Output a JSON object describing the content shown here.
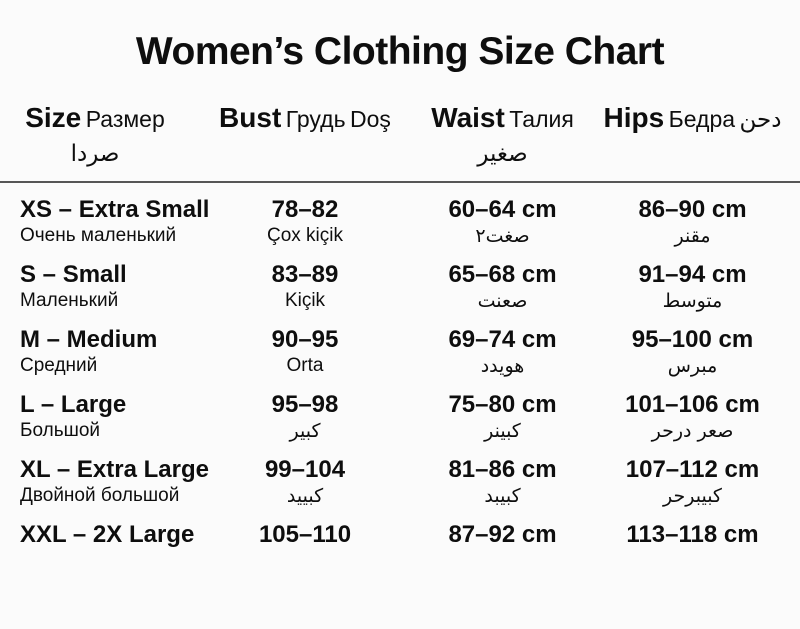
{
  "style": {
    "background": "#fbfbfb",
    "text_color": "#0e0e0e",
    "divider_color": "#565656"
  },
  "chart_data": {
    "type": "table",
    "title": "Women’s Clothing Size Chart",
    "columns": [
      {
        "id": "size",
        "label": "Size",
        "label_line2": "Размер",
        "label_line3": "صردا"
      },
      {
        "id": "bust",
        "label": "Bust",
        "label_line2": "Грудь",
        "label_line3": "Doş"
      },
      {
        "id": "waist",
        "label": "Waist",
        "label_line2": "Талия",
        "label_line3": "صغير"
      },
      {
        "id": "hips",
        "label": "Hips",
        "label_line2": "Бедра",
        "label_line3": "دحن"
      }
    ],
    "rows": [
      {
        "cells": [
          {
            "main": "XS – Extra Small",
            "sub": "Очень маленький"
          },
          {
            "main": "78–82",
            "sub": "Çox kiçik"
          },
          {
            "main": "60–64 cm",
            "sub": "صغت٢"
          },
          {
            "main": "86–90 cm",
            "sub": "مقنر"
          }
        ]
      },
      {
        "cells": [
          {
            "main": "S – Small",
            "sub": "Маленький"
          },
          {
            "main": "83–89",
            "sub": "Kiçik"
          },
          {
            "main": "65–68 cm",
            "sub": "صعنت"
          },
          {
            "main": "91–94 cm",
            "sub": "متوسط"
          }
        ]
      },
      {
        "cells": [
          {
            "main": "M – Medium",
            "sub": "Средний"
          },
          {
            "main": "90–95",
            "sub": "Orta"
          },
          {
            "main": "69–74 cm",
            "sub": "هويدد"
          },
          {
            "main": "95–100 cm",
            "sub": "مبرس"
          }
        ]
      },
      {
        "cells": [
          {
            "main": "L – Large",
            "sub": "Большой"
          },
          {
            "main": "95–98",
            "sub": "كبير"
          },
          {
            "main": "75–80 cm",
            "sub": "كبينر"
          },
          {
            "main": "101–106 cm",
            "sub": "صعر درحر"
          }
        ]
      },
      {
        "cells": [
          {
            "main": "XL – Extra Large",
            "sub": "Двойной большой"
          },
          {
            "main": "99–104",
            "sub": "كبييد"
          },
          {
            "main": "81–86 cm",
            "sub": "كبيبد"
          },
          {
            "main": "107–112 cm",
            "sub": "كبيبرحر"
          }
        ]
      },
      {
        "cells": [
          {
            "main": "XXL – 2X Large",
            "sub": ""
          },
          {
            "main": "105–110",
            "sub": ""
          },
          {
            "main": "87–92 cm",
            "sub": ""
          },
          {
            "main": "113–118 cm",
            "sub": ""
          }
        ]
      }
    ]
  }
}
